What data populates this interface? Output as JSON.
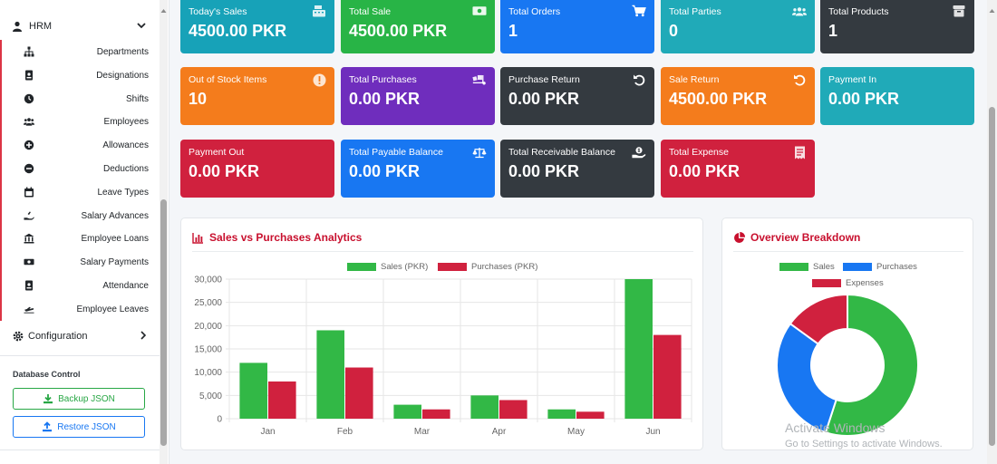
{
  "sidebar": {
    "hrm_label": "HRM",
    "items": [
      {
        "label": "Departments",
        "icon": "sitemap-icon"
      },
      {
        "label": "Designations",
        "icon": "id-badge-icon"
      },
      {
        "label": "Shifts",
        "icon": "clock-icon"
      },
      {
        "label": "Employees",
        "icon": "users-icon"
      },
      {
        "label": "Allowances",
        "icon": "plus-circle-icon"
      },
      {
        "label": "Deductions",
        "icon": "minus-circle-icon"
      },
      {
        "label": "Leave Types",
        "icon": "calendar-icon"
      },
      {
        "label": "Salary Advances",
        "icon": "hand-holding-icon"
      },
      {
        "label": "Employee Loans",
        "icon": "bank-icon"
      },
      {
        "label": "Salary Payments",
        "icon": "money-bill-icon"
      },
      {
        "label": "Attendance",
        "icon": "id-card-icon"
      },
      {
        "label": "Employee Leaves",
        "icon": "plane-icon"
      }
    ],
    "config_label": "Configuration",
    "db_title": "Database Control",
    "backup_label": "Backup JSON",
    "restore_label": "Restore JSON"
  },
  "cards": [
    {
      "title": "Today's Sales",
      "value": "4500.00 PKR",
      "color": "#17a2b8",
      "icon": "cash-register-icon"
    },
    {
      "title": "Total Sale",
      "value": "4500.00 PKR",
      "color": "#28b446",
      "icon": "money-bill-icon"
    },
    {
      "title": "Total Orders",
      "value": "1",
      "color": "#1877f2",
      "icon": "cart-icon"
    },
    {
      "title": "Total Parties",
      "value": "0",
      "color": "#20aab8",
      "icon": "users-icon"
    },
    {
      "title": "Total Products",
      "value": "1",
      "color": "#343a40",
      "icon": "box-icon"
    },
    {
      "title": "Out of Stock Items",
      "value": "10",
      "color": "#f47c1c",
      "icon": "exclamation-icon"
    },
    {
      "title": "Total Purchases",
      "value": "0.00 PKR",
      "color": "#6f2dbd",
      "icon": "truck-loading-icon"
    },
    {
      "title": "Purchase Return",
      "value": "0.00 PKR",
      "color": "#343a40",
      "icon": "undo-icon"
    },
    {
      "title": "Sale Return",
      "value": "4500.00 PKR",
      "color": "#f47c1c",
      "icon": "undo-icon"
    },
    {
      "title": "Payment In",
      "value": "0.00 PKR",
      "color": "#20aab8",
      "icon": ""
    },
    {
      "title": "Payment Out",
      "value": "0.00 PKR",
      "color": "#d0213e",
      "icon": ""
    },
    {
      "title": "Total Payable Balance",
      "value": "0.00 PKR",
      "color": "#1877f2",
      "icon": "balance-scale-icon"
    },
    {
      "title": "Total Receivable Balance",
      "value": "0.00 PKR",
      "color": "#343a40",
      "icon": "hand-holding-usd-icon"
    },
    {
      "title": "Total Expense",
      "value": "0.00 PKR",
      "color": "#d0213e",
      "icon": "receipt-icon"
    }
  ],
  "analytics": {
    "title": "Sales vs Purchases Analytics",
    "chart_data": {
      "type": "bar",
      "categories": [
        "Jan",
        "Feb",
        "Mar",
        "Apr",
        "May",
        "Jun"
      ],
      "series": [
        {
          "name": "Sales (PKR)",
          "color": "#32b846",
          "values": [
            12000,
            19000,
            3000,
            5000,
            2000,
            30000
          ]
        },
        {
          "name": "Purchases (PKR)",
          "color": "#d0213e",
          "values": [
            8000,
            11000,
            2000,
            4000,
            1500,
            18000
          ]
        }
      ],
      "ylim": [
        0,
        30000
      ],
      "yticks": [
        "30,000",
        "25,000",
        "20,000",
        "15,000",
        "10,000",
        "5,000",
        "0"
      ],
      "legend": "top",
      "grid": true
    }
  },
  "overview": {
    "title": "Overview Breakdown",
    "chart_data": {
      "type": "pie",
      "labels": [
        "Sales",
        "Purchases",
        "Expenses"
      ],
      "values": [
        55,
        30,
        15
      ],
      "colors": [
        "#32b846",
        "#1877f2",
        "#d0213e"
      ],
      "legend": "top"
    }
  },
  "watermark": {
    "line1": "Activate Windows",
    "line2": "Go to Settings to activate Windows."
  }
}
